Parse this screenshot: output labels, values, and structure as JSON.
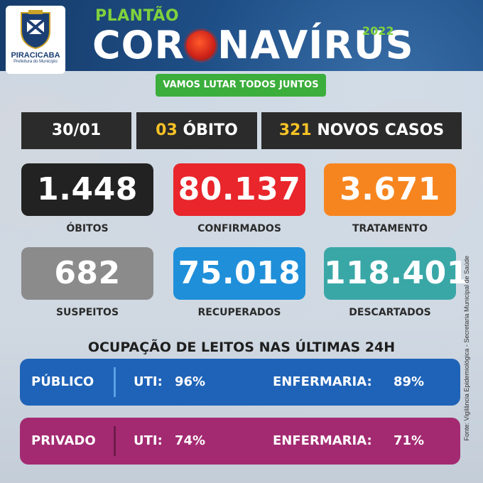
{
  "header": {
    "logo_name": "PIRACICABA",
    "logo_subtitle": "Prefeitura do Município",
    "kicker": "PLANTÃO",
    "title_part1": "COR",
    "title_part2": "NAVÍRUS",
    "year": "2022",
    "motto": "VAMOS LUTAR TODOS JUNTOS"
  },
  "daily": {
    "date": "30/01",
    "deaths_count": "03",
    "deaths_label": "ÓBITO",
    "new_cases_count": "321",
    "new_cases_label": "NOVOS CASOS"
  },
  "stats": [
    {
      "value": "1.448",
      "label": "ÓBITOS",
      "color": "#222222"
    },
    {
      "value": "80.137",
      "label": "CONFIRMADOS",
      "color": "#e8262b"
    },
    {
      "value": "3.671",
      "label": "TRATAMENTO",
      "color": "#f7851f"
    },
    {
      "value": "682",
      "label": "SUSPEITOS",
      "color": "#8b8b8b"
    },
    {
      "value": "75.018",
      "label": "RECUPERADOS",
      "color": "#1f8fd9"
    },
    {
      "value": "118.401",
      "label": "DESCARTADOS",
      "color": "#3aa7a7"
    }
  ],
  "beds": {
    "heading": "OCUPAÇÃO DE LEITOS NAS ÚLTIMAS 24H",
    "rows": [
      {
        "sector": "PÚBLICO",
        "uti_label": "UTI:",
        "uti_value": "96%",
        "ward_label": "ENFERMARIA:",
        "ward_value": "89%",
        "color": "#1f63b8"
      },
      {
        "sector": "PRIVADO",
        "uti_label": "UTI:",
        "uti_value": "74%",
        "ward_label": "ENFERMARIA:",
        "ward_value": "71%",
        "color": "#a32a71"
      }
    ]
  },
  "source": "Fonte: Vigilância Epidemiológica - Secretaria Municipal de Saúde"
}
